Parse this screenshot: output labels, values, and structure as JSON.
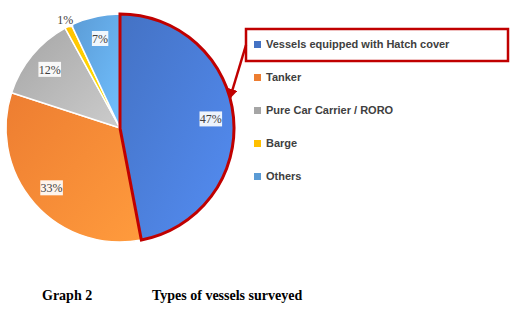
{
  "chart_data": {
    "type": "pie",
    "title": "Graph 2",
    "subtitle": "Types of vessels surveyed",
    "categories": [
      "Vessels equipped with Hatch cover",
      "Tanker",
      "Pure Car Carrier / RORO",
      "Barge",
      "Others"
    ],
    "values": [
      47,
      33,
      12,
      1,
      7
    ],
    "value_labels": [
      "47%",
      "33%",
      "12%",
      "1%",
      "7%"
    ],
    "colors": [
      "#4472c4",
      "#ed7d31",
      "#a5a5a5",
      "#ffc000",
      "#5b9bd5"
    ],
    "data_labels": true,
    "legend": "right"
  }
}
